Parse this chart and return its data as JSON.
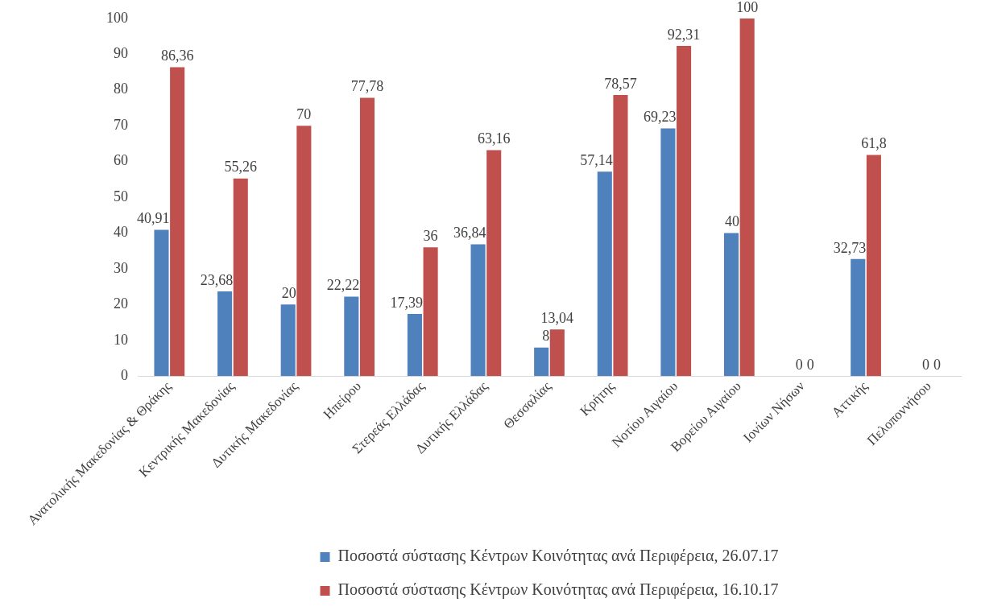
{
  "chart_data": {
    "type": "bar",
    "categories": [
      "Ανατολικής Μακεδονίας & Θράκης",
      "Κεντρικής Μακεδονίας",
      "Δυτικής Μακεδονίας",
      "Ηπείρου",
      "Στερεάς Ελλάδας",
      "Δυτικής Ελλάδας",
      "Θεσσαλίας",
      "Κρήτης",
      "Νοτίου Αιγαίου",
      "Βορείου Αιγαίου",
      "Ιονίων Νήσων",
      "Αττικής",
      "Πελοποννήσου"
    ],
    "series": [
      {
        "name": "Ποσοστά σύστασης Κέντρων Κοινότητας ανά Περιφέρεια, 26.07.17",
        "color": "#4f81bd",
        "values": [
          40.91,
          23.68,
          20,
          22.22,
          17.39,
          36.84,
          8,
          57.14,
          69.23,
          40,
          0,
          32.73,
          0
        ],
        "value_labels": [
          "40,91",
          "23,68",
          "20",
          "22,22",
          "17,39",
          "36,84",
          "8",
          "57,14",
          "69,23",
          "40",
          "0",
          "32,73",
          "0"
        ]
      },
      {
        "name": "Ποσοστά σύστασης Κέντρων Κοινότητας ανά Περιφέρεια, 16.10.17",
        "color": "#c0504d",
        "values": [
          86.36,
          55.26,
          70,
          77.78,
          36,
          63.16,
          13.04,
          78.57,
          92.31,
          100,
          0,
          61.8,
          0
        ],
        "value_labels": [
          "86,36",
          "55,26",
          "70",
          "77,78",
          "36",
          "63,16",
          "13,04",
          "78,57",
          "92,31",
          "100",
          "0",
          "61,8",
          "0"
        ]
      }
    ],
    "ylim": [
      0,
      100
    ],
    "yticks": [
      0,
      10,
      20,
      30,
      40,
      50,
      60,
      70,
      80,
      90,
      100
    ],
    "grid": false,
    "legend": "bottom"
  }
}
